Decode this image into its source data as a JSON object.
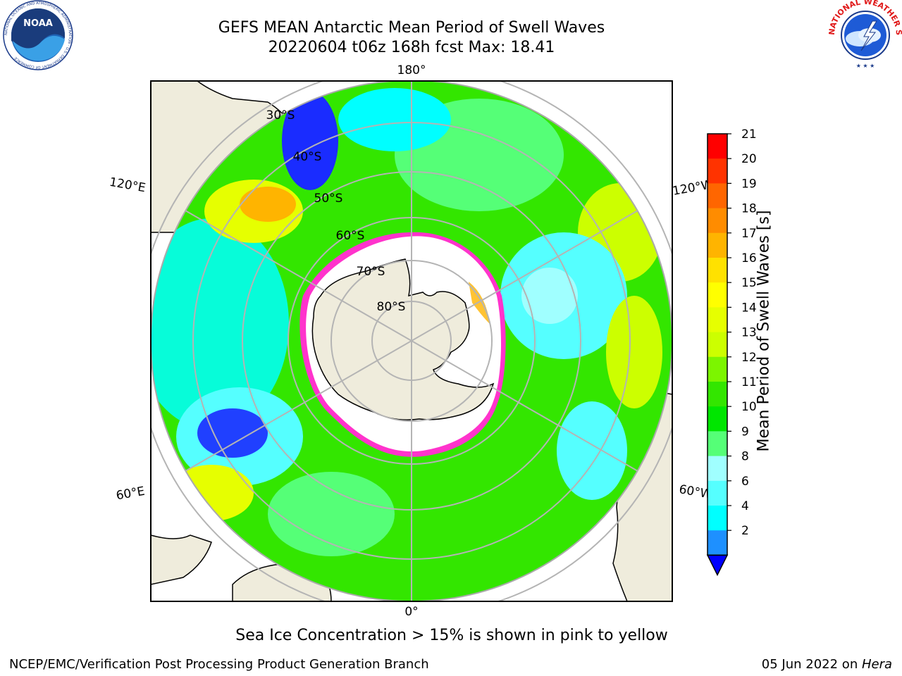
{
  "title": {
    "line1": "GEFS MEAN Antarctic Mean Period of Swell Waves",
    "line2": "20220604 t06z 168h fcst   Max: 18.41"
  },
  "map": {
    "meridian_labels": {
      "top": "180°",
      "bottom": "0°",
      "left_upper": "120°E",
      "left_lower": "60°E",
      "right_upper": "120°W",
      "right_lower": "60°W"
    },
    "latitude_labels": [
      "30°S",
      "40°S",
      "50°S",
      "60°S",
      "70°S",
      "80°S"
    ],
    "land_color": "#efecdc",
    "ocean_colors": {
      "blue": "#0000ff",
      "cyan": "#00ffff",
      "light_cyan": "#a0ffff",
      "green": "#00e600",
      "light_green": "#55ff55",
      "yellow_green": "#ccff00",
      "yellow": "#ffff00",
      "orange": "#ffa500",
      "ice_pink": "#ff33cc"
    }
  },
  "colorbar": {
    "label": "Mean Period of Swell Waves [s]",
    "ticks": [
      "21",
      "20",
      "19",
      "18",
      "17",
      "16",
      "15",
      "14",
      "13",
      "12",
      "11",
      "10",
      "9",
      "8",
      "6",
      "4",
      "2"
    ],
    "colors": [
      "#ff0000",
      "#ff3300",
      "#ff6600",
      "#ff8c00",
      "#ffb400",
      "#ffe100",
      "#ffff00",
      "#e6ff00",
      "#ccff00",
      "#7cf500",
      "#33e600",
      "#00e600",
      "#55ff77",
      "#a0ffff",
      "#55ffff",
      "#00ffff",
      "#1e90ff",
      "#0000ff"
    ],
    "extend_color": "#0000ff"
  },
  "caption": "Sea Ice Concentration > 15% is shown in pink to yellow",
  "footer": {
    "left": "NCEP/EMC/Verification Post Processing Product Generation Branch",
    "date": "05 Jun 2022 on ",
    "host": "Hera"
  },
  "logos": {
    "noaa_text": "NOAA",
    "noaa_ring": "NATIONAL OCEANIC AND ATMOSPHERIC ADMINISTRATION · U.S. DEPARTMENT OF COMMERCE",
    "nws_ring": "NATIONAL WEATHER SERVICE"
  }
}
